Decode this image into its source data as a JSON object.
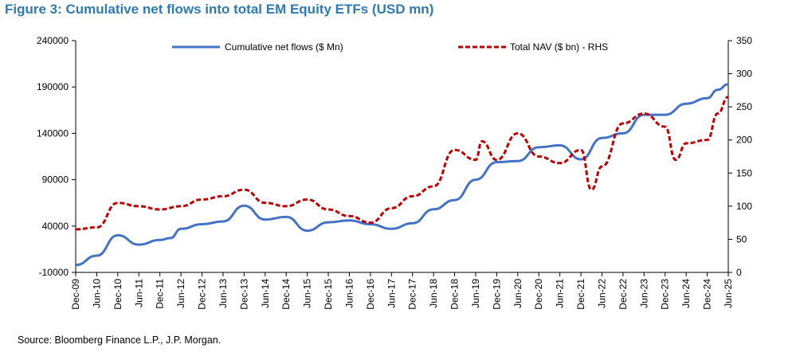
{
  "title": "Figure 3: Cumulative net flows into total EM Equity ETFs (USD mn)",
  "source": "Source: Bloomberg Finance L.P., J.P. Morgan.",
  "colors": {
    "title": "#2F79B5",
    "flows": "#4472C4",
    "nav": "#C00000"
  },
  "chart_data": {
    "type": "line",
    "title": "Figure 3: Cumulative net flows into total EM Equity ETFs (USD mn)",
    "x_ticks": [
      "Dec-09",
      "Jun-10",
      "Dec-10",
      "Jun-11",
      "Dec-11",
      "Jun-12",
      "Dec-12",
      "Jun-13",
      "Dec-13",
      "Jun-14",
      "Dec-14",
      "Jun-15",
      "Dec-15",
      "Jun-16",
      "Dec-16",
      "Jun-17",
      "Dec-17",
      "Jun-18",
      "Dec-18",
      "Jun-19",
      "Dec-19",
      "Jun-20",
      "Dec-20",
      "Jun-21",
      "Dec-21",
      "Jun-22",
      "Dec-22",
      "Jun-23",
      "Dec-23",
      "Jun-24",
      "Dec-24",
      "Jun-25"
    ],
    "y_left": {
      "min": -10000,
      "max": 240000,
      "ticks": [
        -10000,
        40000,
        90000,
        140000,
        190000,
        240000
      ]
    },
    "y_right": {
      "min": 0,
      "max": 350,
      "ticks": [
        0,
        50,
        100,
        150,
        200,
        250,
        300,
        350
      ]
    },
    "legend": "top",
    "grid": false,
    "series": [
      {
        "name": "Cumulative net flows ($ Mn)",
        "axis": "left",
        "style": "solid",
        "x": [
          0,
          1,
          2,
          3,
          4,
          4.5,
          5,
          6,
          7,
          8,
          9,
          10,
          11,
          12,
          13,
          14,
          15,
          16,
          17,
          18,
          19,
          20,
          21,
          22,
          23,
          24,
          25,
          26,
          27,
          28,
          29,
          30,
          30.5,
          31
        ],
        "values": [
          -2000,
          8000,
          30000,
          20000,
          25000,
          27000,
          37000,
          42000,
          45000,
          62000,
          47000,
          50000,
          35000,
          44000,
          46000,
          42000,
          37000,
          43000,
          58000,
          68000,
          90000,
          109000,
          110000,
          125000,
          127000,
          112000,
          135000,
          140000,
          160000,
          160000,
          172000,
          178000,
          187000,
          193000
        ]
      },
      {
        "name": "Total NAV ($ bn) - RHS",
        "axis": "right",
        "style": "dashed",
        "x": [
          0,
          1,
          2,
          3,
          4,
          5,
          6,
          7,
          8,
          9,
          10,
          11,
          12,
          13,
          14,
          15,
          16,
          17,
          18,
          19,
          19.3,
          20,
          21,
          22,
          23,
          24,
          24.5,
          25,
          26,
          27,
          28,
          28.5,
          29,
          30,
          30.5,
          31
        ],
        "values": [
          65,
          68,
          105,
          100,
          95,
          100,
          110,
          115,
          125,
          105,
          100,
          110,
          95,
          85,
          75,
          97,
          115,
          130,
          185,
          170,
          198,
          170,
          210,
          175,
          165,
          185,
          125,
          160,
          225,
          240,
          220,
          170,
          195,
          200,
          240,
          265
        ]
      }
    ]
  }
}
